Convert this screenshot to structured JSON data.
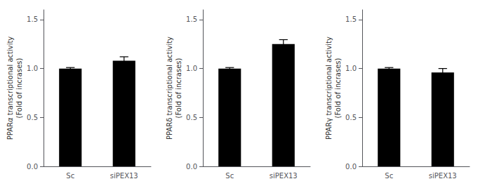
{
  "chart_data": [
    {
      "type": "bar",
      "ylabel": "PPARα transcriptional activity\n(Fold of incrases)",
      "categories": [
        "Sc",
        "siPEX13"
      ],
      "values": [
        1.0,
        1.08
      ],
      "errors": [
        0.01,
        0.04
      ],
      "color": "#000000",
      "ylim": [
        0,
        1.6
      ],
      "yticks": [
        {
          "value": 0,
          "label": "0.0"
        },
        0.5,
        {
          "value": 1.0,
          "label": "1.0"
        },
        1.5
      ],
      "grid": false
    },
    {
      "type": "bar",
      "ylabel": "PPARδ transcriptional activity\n(Fold of incrases)",
      "categories": [
        "Sc",
        "siPEX13"
      ],
      "values": [
        1.0,
        1.25
      ],
      "errors": [
        0.01,
        0.045
      ],
      "color": "#000000",
      "ylim": [
        0,
        1.6
      ],
      "yticks": [
        {
          "value": 0,
          "label": "0.0"
        },
        0.5,
        {
          "value": 1.0,
          "label": "1.0"
        },
        1.5
      ],
      "grid": false
    },
    {
      "type": "bar",
      "ylabel": "PPARγ transcriptional activity\n(Fold of incrases)",
      "categories": [
        "Sc",
        "siPEX13"
      ],
      "values": [
        1.0,
        0.96
      ],
      "errors": [
        0.01,
        0.04
      ],
      "color": "#000000",
      "ylim": [
        0,
        1.6
      ],
      "yticks": [
        {
          "value": 0,
          "label": "0.0"
        },
        0.5,
        {
          "value": 1.0,
          "label": "1.0"
        },
        1.5
      ],
      "grid": false
    }
  ]
}
